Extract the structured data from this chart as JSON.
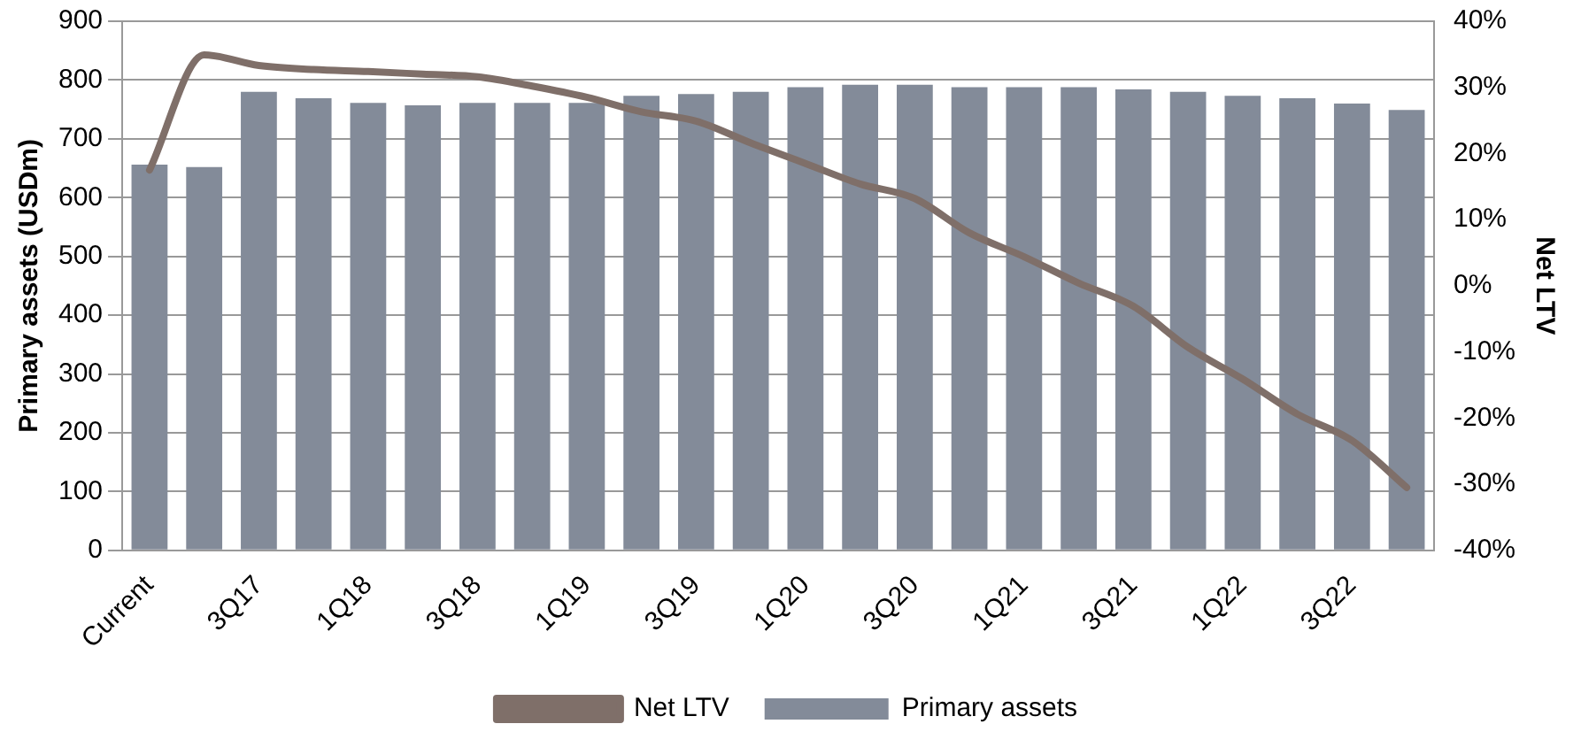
{
  "chart_data": {
    "type": "bar",
    "ylabel": "Primary assets (USDm)",
    "y2label": "Net LTV",
    "categories": [
      "Current",
      null,
      "3Q17",
      null,
      "1Q18",
      null,
      "3Q18",
      null,
      "1Q19",
      null,
      "3Q19",
      null,
      "1Q20",
      null,
      "3Q20",
      null,
      "1Q21",
      null,
      "3Q21",
      null,
      "1Q22",
      null,
      "3Q22",
      null
    ],
    "series": [
      {
        "name": "Primary assets",
        "color": "#838b99",
        "values": [
          656,
          652,
          780,
          769,
          761,
          757,
          761,
          761,
          761,
          773,
          776,
          780,
          788,
          792,
          792,
          788,
          788,
          788,
          784,
          780,
          773,
          769,
          760,
          749
        ]
      },
      {
        "name": "Net LTV",
        "type": "line",
        "axis": "y2",
        "color": "#7f6f69",
        "values": [
          17.5,
          34.9,
          33.3,
          32.7,
          32.4,
          32.0,
          31.6,
          30.2,
          28.5,
          26.3,
          24.9,
          21.6,
          18.5,
          15.4,
          13.2,
          8.0,
          4.4,
          0.4,
          -3.1,
          -9.3,
          -14.1,
          -19.4,
          -23.4,
          -30.5
        ]
      }
    ],
    "ylim": [
      0,
      900
    ],
    "yticks": [
      0,
      100,
      200,
      300,
      400,
      500,
      600,
      700,
      800,
      900
    ],
    "y2lim": [
      -40,
      40
    ],
    "y2ticks": [
      {
        "value": -40,
        "label": "-40%"
      },
      {
        "value": -30,
        "label": "-30%"
      },
      {
        "value": -20,
        "label": "-20%"
      },
      {
        "value": -10,
        "label": "-10%"
      },
      {
        "value": 0,
        "label": "0%"
      },
      {
        "value": 10,
        "label": "10%"
      },
      {
        "value": 20,
        "label": "20%"
      },
      {
        "value": 30,
        "label": "30%"
      },
      {
        "value": 40,
        "label": "40%"
      }
    ],
    "grid": "y",
    "legend": "bottom",
    "marker": "none"
  }
}
